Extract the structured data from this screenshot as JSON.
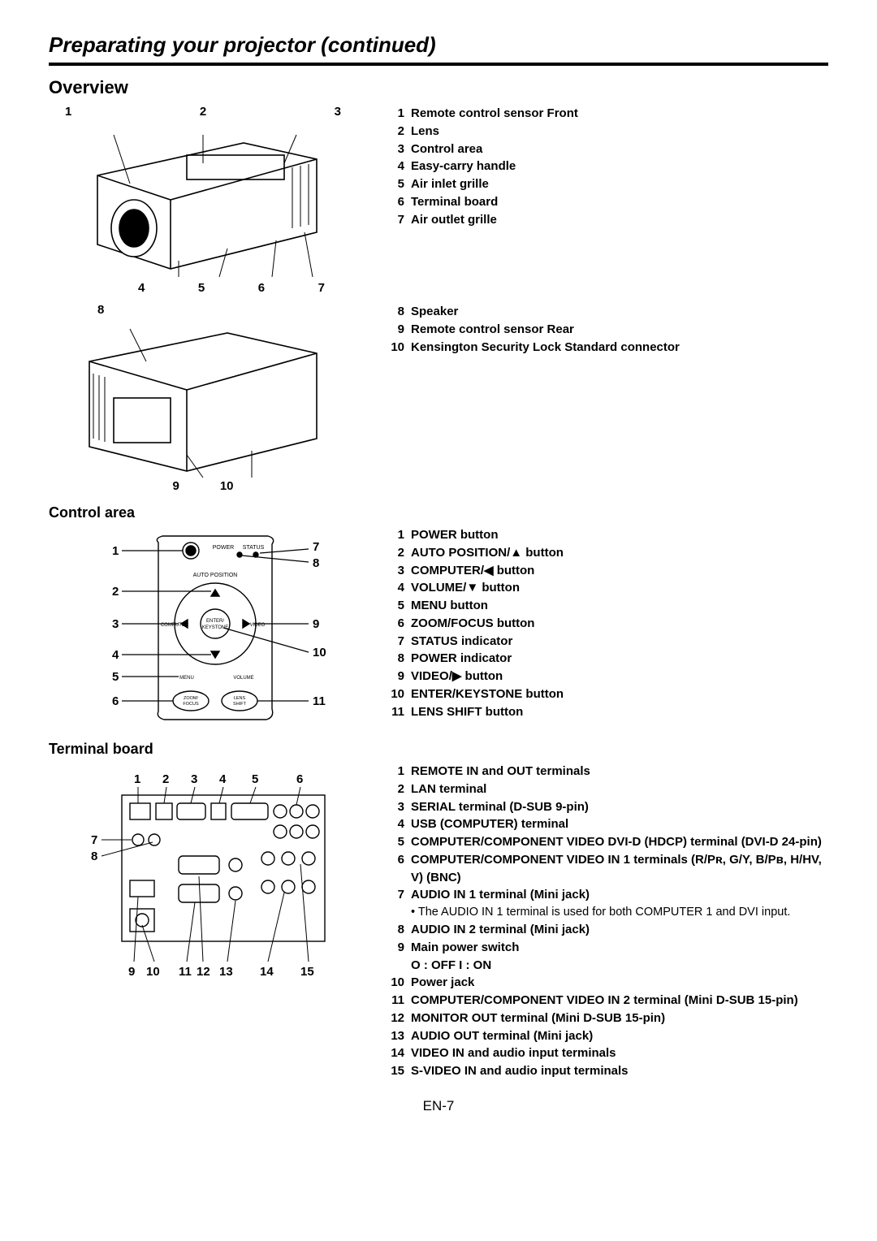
{
  "page": {
    "title": "Preparating your projector (continued)",
    "footer": "EN-7"
  },
  "overview": {
    "heading": "Overview",
    "fig1": {
      "top_labels": [
        "1",
        "2",
        "3"
      ],
      "bottom_labels": [
        "4",
        "5",
        "6",
        "7"
      ],
      "stroke": "#000000",
      "fill": "#ffffff",
      "line_width": 1.5
    },
    "fig2": {
      "top_labels": [
        "8"
      ],
      "bottom_labels": [
        "9",
        "10"
      ],
      "stroke": "#000000",
      "fill": "#ffffff",
      "line_width": 1.5
    },
    "list1": [
      {
        "n": "1",
        "t": "Remote control sensor Front"
      },
      {
        "n": "2",
        "t": "Lens"
      },
      {
        "n": "3",
        "t": "Control area"
      },
      {
        "n": "4",
        "t": "Easy-carry handle"
      },
      {
        "n": "5",
        "t": "Air inlet grille"
      },
      {
        "n": "6",
        "t": "Terminal board"
      },
      {
        "n": "7",
        "t": "Air outlet grille"
      }
    ],
    "list2": [
      {
        "n": "8",
        "t": "Speaker"
      },
      {
        "n": "9",
        "t": "Remote control sensor Rear"
      },
      {
        "n": "10",
        "t": "Kensington Security Lock Standard connector"
      }
    ]
  },
  "control_area": {
    "heading": "Control area",
    "fig": {
      "left_labels": [
        "1",
        "2",
        "3",
        "4",
        "5",
        "6"
      ],
      "right_labels": [
        "7",
        "8",
        "9",
        "10",
        "11"
      ],
      "text_labels": {
        "power": "POWER",
        "status": "STATUS",
        "auto_position": "AUTO POSITION",
        "computer": "COMPUTER",
        "enter": "ENTER/",
        "keystone": "KEYSTONE",
        "video": "VIDEO",
        "menu": "MENU",
        "volume": "VOLUME",
        "zoom": "ZOOM/",
        "focus": "FOCUS",
        "lens": "LENS",
        "shift": "SHIFT"
      },
      "stroke": "#000000",
      "line_width": 1.4
    },
    "list": [
      {
        "n": "1",
        "t": "POWER button"
      },
      {
        "n": "2",
        "t": "AUTO POSITION/▲ button"
      },
      {
        "n": "3",
        "t": "COMPUTER/◀ button"
      },
      {
        "n": "4",
        "t": "VOLUME/▼ button"
      },
      {
        "n": "5",
        "t": "MENU button"
      },
      {
        "n": "6",
        "t": "ZOOM/FOCUS button"
      },
      {
        "n": "7",
        "t": "STATUS indicator"
      },
      {
        "n": "8",
        "t": "POWER indicator"
      },
      {
        "n": "9",
        "t": "VIDEO/▶ button"
      },
      {
        "n": "10",
        "t": "ENTER/KEYSTONE button"
      },
      {
        "n": "11",
        "t": "LENS SHIFT button"
      }
    ]
  },
  "terminal_board": {
    "heading": "Terminal board",
    "fig": {
      "top_labels": [
        "1",
        "2",
        "3",
        "4",
        "5",
        "6"
      ],
      "left_labels": [
        "7",
        "8"
      ],
      "bottom_labels": [
        "9",
        "10",
        "11",
        "12",
        "13",
        "14",
        "15"
      ],
      "stroke": "#000000",
      "line_width": 1.4
    },
    "list": [
      {
        "n": "1",
        "t": "REMOTE IN and OUT terminals"
      },
      {
        "n": "2",
        "t": "LAN terminal"
      },
      {
        "n": "3",
        "t": "SERIAL terminal (D-SUB 9-pin)"
      },
      {
        "n": "4",
        "t": "USB (COMPUTER) terminal"
      },
      {
        "n": "5",
        "t": "COMPUTER/COMPONENT VIDEO DVI-D (HDCP) terminal (DVI-D 24-pin)"
      },
      {
        "n": "6",
        "t": "COMPUTER/COMPONENT VIDEO IN 1 terminals (R/Pʀ, G/Y, B/Pʙ, H/HV, V) (BNC)"
      },
      {
        "n": "7",
        "t": "AUDIO IN 1 terminal (Mini jack)",
        "sub": "The AUDIO IN 1 terminal is used for both COMPUTER 1 and DVI input."
      },
      {
        "n": "8",
        "t": "AUDIO IN 2 terminal (Mini jack)"
      },
      {
        "n": "9",
        "t": "Main power switch",
        "extra": "O : OFF      I : ON"
      },
      {
        "n": "10",
        "t": "Power jack"
      },
      {
        "n": "11",
        "t": "COMPUTER/COMPONENT VIDEO IN 2 terminal (Mini D-SUB 15-pin)"
      },
      {
        "n": "12",
        "t": "MONITOR OUT terminal (Mini D-SUB 15-pin)"
      },
      {
        "n": "13",
        "t": "AUDIO OUT terminal (Mini jack)"
      },
      {
        "n": "14",
        "t": "VIDEO IN and audio input terminals"
      },
      {
        "n": "15",
        "t": "S-VIDEO IN and audio input terminals"
      }
    ]
  }
}
